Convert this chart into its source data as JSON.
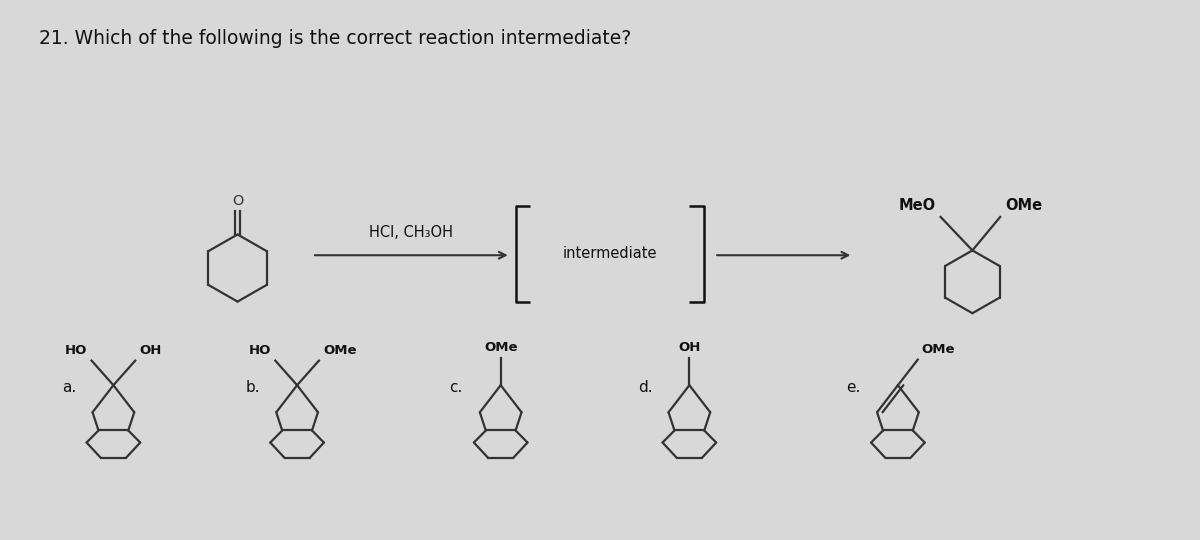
{
  "title": "21. Which of the following is the correct reaction intermediate?",
  "background_color": "#d8d8d8",
  "title_fontsize": 13.5,
  "reagents_text": "HCl, CH₃OH",
  "intermediate_text": "intermediate",
  "line_color": "#333333",
  "line_width": 1.6
}
